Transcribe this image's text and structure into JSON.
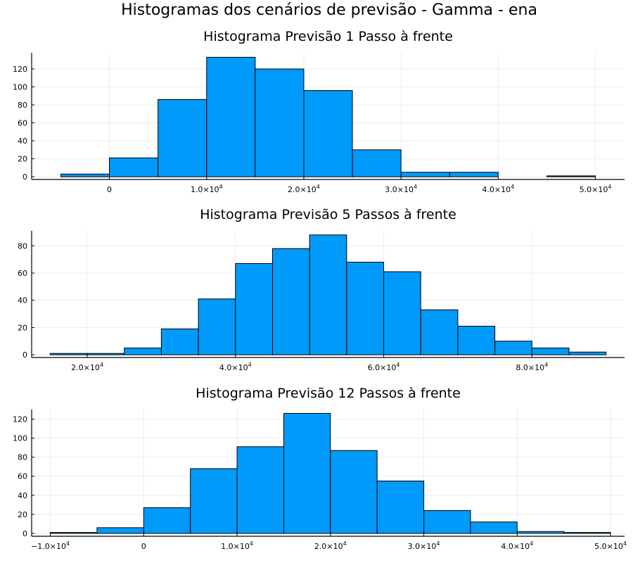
{
  "figure": {
    "suptitle": "Histogramas dos cenários de previsão - Gamma - ena",
    "bar_color": "#009AFA",
    "grid": true,
    "legend": "none"
  },
  "chart_data": [
    {
      "type": "bar",
      "title": "Histograma Previsão 1 Passo à frente",
      "bin_edges": [
        -5000,
        0,
        5000,
        10000,
        15000,
        20000,
        25000,
        30000,
        35000,
        40000,
        45000,
        50000
      ],
      "values": [
        3,
        21,
        86,
        133,
        120,
        96,
        30,
        5,
        5,
        0,
        1
      ],
      "xlim": [
        -8000,
        53000
      ],
      "ylim": [
        -3,
        138
      ],
      "xticks": [
        {
          "value": 0,
          "label": "0"
        },
        {
          "value": 10000,
          "label": "1.0×10",
          "sup": "4"
        },
        {
          "value": 20000,
          "label": "2.0×10",
          "sup": "4"
        },
        {
          "value": 30000,
          "label": "3.0×10",
          "sup": "4"
        },
        {
          "value": 40000,
          "label": "4.0×10",
          "sup": "4"
        },
        {
          "value": 50000,
          "label": "5.0×10",
          "sup": "4"
        }
      ],
      "yticks": [
        {
          "value": 0,
          "label": "0"
        },
        {
          "value": 20,
          "label": "20"
        },
        {
          "value": 40,
          "label": "40"
        },
        {
          "value": 60,
          "label": "60"
        },
        {
          "value": 80,
          "label": "80"
        },
        {
          "value": 100,
          "label": "100"
        },
        {
          "value": 120,
          "label": "120"
        }
      ]
    },
    {
      "type": "bar",
      "title": "Histograma Previsão 5 Passos à frente",
      "bin_edges": [
        15000,
        20000,
        25000,
        30000,
        35000,
        40000,
        45000,
        50000,
        55000,
        60000,
        65000,
        70000,
        75000,
        80000,
        85000,
        90000
      ],
      "values": [
        1,
        1,
        5,
        19,
        41,
        67,
        78,
        88,
        68,
        61,
        33,
        21,
        10,
        5,
        2
      ],
      "xlim": [
        12500,
        92500
      ],
      "ylim": [
        -2,
        91
      ],
      "xticks": [
        {
          "value": 20000,
          "label": "2.0×10",
          "sup": "4"
        },
        {
          "value": 40000,
          "label": "4.0×10",
          "sup": "4"
        },
        {
          "value": 60000,
          "label": "6.0×10",
          "sup": "4"
        },
        {
          "value": 80000,
          "label": "8.0×10",
          "sup": "4"
        }
      ],
      "yticks": [
        {
          "value": 0,
          "label": "0"
        },
        {
          "value": 20,
          "label": "20"
        },
        {
          "value": 40,
          "label": "40"
        },
        {
          "value": 60,
          "label": "60"
        },
        {
          "value": 80,
          "label": "80"
        }
      ]
    },
    {
      "type": "bar",
      "title": "Histograma Previsão 12 Passos à frente",
      "bin_edges": [
        -10000,
        -5000,
        0,
        5000,
        10000,
        15000,
        20000,
        25000,
        30000,
        35000,
        40000,
        45000,
        50000
      ],
      "values": [
        1,
        6,
        27,
        68,
        91,
        126,
        87,
        55,
        24,
        12,
        2,
        1
      ],
      "xlim": [
        -12000,
        51500
      ],
      "ylim": [
        -3,
        130
      ],
      "xticks": [
        {
          "value": -10000,
          "label": "−1.0×10",
          "sup": "4"
        },
        {
          "value": 0,
          "label": "0"
        },
        {
          "value": 10000,
          "label": "1.0×10",
          "sup": "4"
        },
        {
          "value": 20000,
          "label": "2.0×10",
          "sup": "4"
        },
        {
          "value": 30000,
          "label": "3.0×10",
          "sup": "4"
        },
        {
          "value": 40000,
          "label": "4.0×10",
          "sup": "4"
        },
        {
          "value": 50000,
          "label": "5.0×10",
          "sup": "4"
        }
      ],
      "yticks": [
        {
          "value": 0,
          "label": "0"
        },
        {
          "value": 20,
          "label": "20"
        },
        {
          "value": 40,
          "label": "40"
        },
        {
          "value": 60,
          "label": "60"
        },
        {
          "value": 80,
          "label": "80"
        },
        {
          "value": 100,
          "label": "100"
        },
        {
          "value": 120,
          "label": "120"
        }
      ]
    }
  ]
}
